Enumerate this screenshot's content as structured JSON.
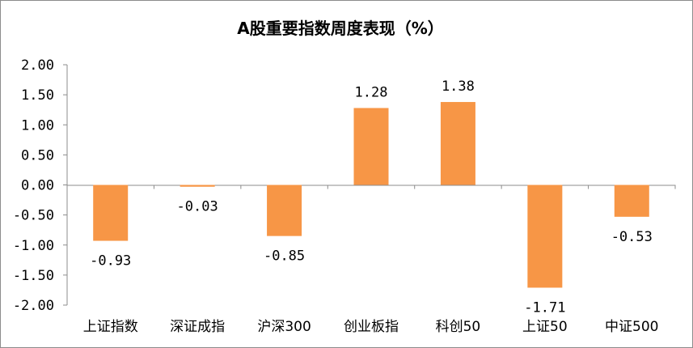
{
  "chart_data": {
    "type": "bar",
    "title": "A股重要指数周度表现（%）",
    "categories": [
      "上证指数",
      "深证成指",
      "沪深300",
      "创业板指",
      "科创50",
      "上证50",
      "中证500"
    ],
    "values": [
      -0.93,
      -0.03,
      -0.85,
      1.28,
      1.38,
      -1.71,
      -0.53
    ],
    "data_labels": [
      "-0.93",
      "-0.03",
      "-0.85",
      "1.28",
      "1.38",
      "-1.71",
      "-0.53"
    ],
    "ylim": [
      -2.0,
      2.0
    ],
    "yticks": [
      2.0,
      1.5,
      1.0,
      0.5,
      0.0,
      -0.5,
      -1.0,
      -1.5,
      -2.0
    ],
    "ytick_labels": [
      "2.00",
      "1.50",
      "1.00",
      "0.50",
      "0.00",
      "-0.50",
      "-1.00",
      "-1.50",
      "-2.00"
    ],
    "bar_color": "#F79646",
    "grid": false,
    "legend": "none"
  }
}
